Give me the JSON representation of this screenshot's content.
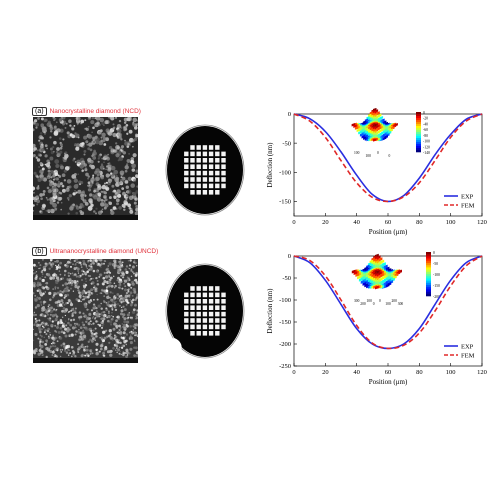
{
  "panels": [
    {
      "tag": "(a)",
      "title": "Nanocrystalline diamond (NCD)",
      "chart_key": 0,
      "inset_colorbar_ticks": [
        "0",
        "-20",
        "-40",
        "-60",
        "-80",
        "-100",
        "-120",
        "-140"
      ],
      "inset_axis_labels": [
        "100",
        "100",
        "0",
        "0"
      ]
    },
    {
      "tag": "(b)",
      "title": "Ultrananocrystalline diamond (UNCD)",
      "chart_key": 1,
      "inset_colorbar_ticks": [
        "0",
        "-50",
        "-100",
        "-150",
        "-200"
      ],
      "inset_axis_labels": [
        "300",
        "200",
        "100",
        "0",
        "0",
        "100",
        "200",
        "300"
      ]
    }
  ],
  "chart_data": [
    {
      "type": "line",
      "title": "",
      "xlabel": "Position (μm)",
      "ylabel": "Deflection (nm)",
      "xlim": [
        0,
        120
      ],
      "ylim": [
        -175,
        0
      ],
      "xticks": [
        0,
        20,
        40,
        60,
        80,
        100,
        120
      ],
      "yticks": [
        0,
        -50,
        -100,
        -150
      ],
      "legend_position": "bottom-right",
      "series": [
        {
          "name": "EXP",
          "color": "#2a2ee0",
          "dash": "solid",
          "x": [
            0,
            10,
            20,
            30,
            40,
            50,
            60,
            70,
            80,
            90,
            100,
            110,
            120
          ],
          "y": [
            0,
            -8,
            -30,
            -65,
            -105,
            -138,
            -150,
            -140,
            -110,
            -70,
            -35,
            -9,
            0
          ]
        },
        {
          "name": "FEM",
          "color": "#e02828",
          "dash": "dashed",
          "x": [
            0,
            10,
            20,
            30,
            40,
            50,
            60,
            70,
            80,
            90,
            100,
            110,
            120
          ],
          "y": [
            0,
            -12,
            -40,
            -80,
            -118,
            -143,
            -150,
            -142,
            -118,
            -80,
            -40,
            -12,
            0
          ]
        }
      ]
    },
    {
      "type": "line",
      "title": "",
      "xlabel": "Position (μm)",
      "ylabel": "Deflection (nm)",
      "xlim": [
        0,
        120
      ],
      "ylim": [
        -250,
        0
      ],
      "xticks": [
        0,
        20,
        40,
        60,
        80,
        100,
        120
      ],
      "yticks": [
        0,
        -50,
        -100,
        -150,
        -200,
        -250
      ],
      "legend_position": "bottom-right",
      "series": [
        {
          "name": "EXP",
          "color": "#2a2ee0",
          "dash": "solid",
          "x": [
            0,
            10,
            20,
            30,
            40,
            50,
            60,
            70,
            80,
            90,
            100,
            110,
            120
          ],
          "y": [
            0,
            -15,
            -55,
            -110,
            -165,
            -200,
            -210,
            -200,
            -165,
            -110,
            -55,
            -15,
            0
          ]
        },
        {
          "name": "FEM",
          "color": "#e02828",
          "dash": "dashed",
          "x": [
            0,
            10,
            20,
            30,
            40,
            50,
            60,
            70,
            80,
            90,
            100,
            110,
            120
          ],
          "y": [
            0,
            -10,
            -45,
            -100,
            -158,
            -198,
            -210,
            -203,
            -175,
            -125,
            -68,
            -22,
            0
          ]
        }
      ]
    }
  ]
}
